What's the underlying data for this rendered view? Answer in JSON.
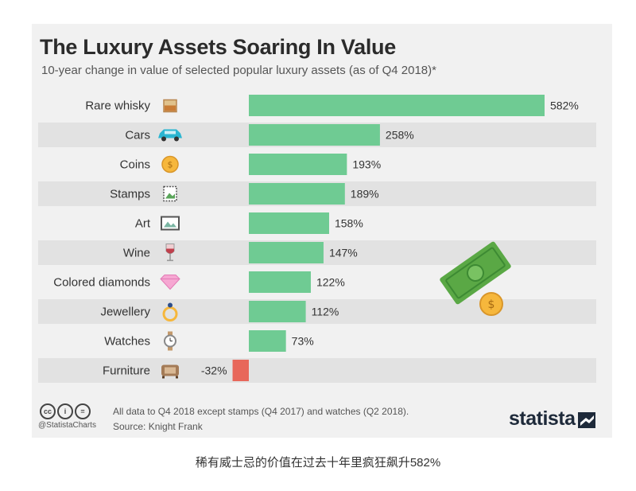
{
  "chart_data": {
    "type": "bar",
    "orientation": "horizontal",
    "title": "The Luxury Assets Soaring In Value",
    "subtitle": "10-year change in value of selected popular luxury assets (as of Q4 2018)*",
    "categories": [
      "Rare whisky",
      "Cars",
      "Coins",
      "Stamps",
      "Art",
      "Wine",
      "Colored diamonds",
      "Jewellery",
      "Watches",
      "Furniture"
    ],
    "values": [
      582,
      258,
      193,
      189,
      158,
      147,
      122,
      112,
      73,
      -32
    ],
    "labels": [
      "582%",
      "258%",
      "193%",
      "189%",
      "158%",
      "147%",
      "122%",
      "112%",
      "73%",
      "-32%"
    ],
    "icons": [
      "whisky-glass-icon",
      "car-icon",
      "coin-icon",
      "stamp-icon",
      "art-frame-icon",
      "wine-glass-icon",
      "diamond-icon",
      "ring-icon",
      "watch-icon",
      "armchair-icon"
    ],
    "unit": "%",
    "xlim": [
      -40,
      600
    ],
    "colors": {
      "positive": "#6fcb93",
      "negative": "#e8675a"
    }
  },
  "footer": {
    "license": "@StatistaCharts",
    "note": "All data to Q4 2018 except stamps (Q4 2017) and watches (Q2 2018).",
    "source": "Source: Knight Frank",
    "brand": "statista"
  },
  "caption": "稀有威士忌的价值在过去十年里疯狂飙升582%"
}
